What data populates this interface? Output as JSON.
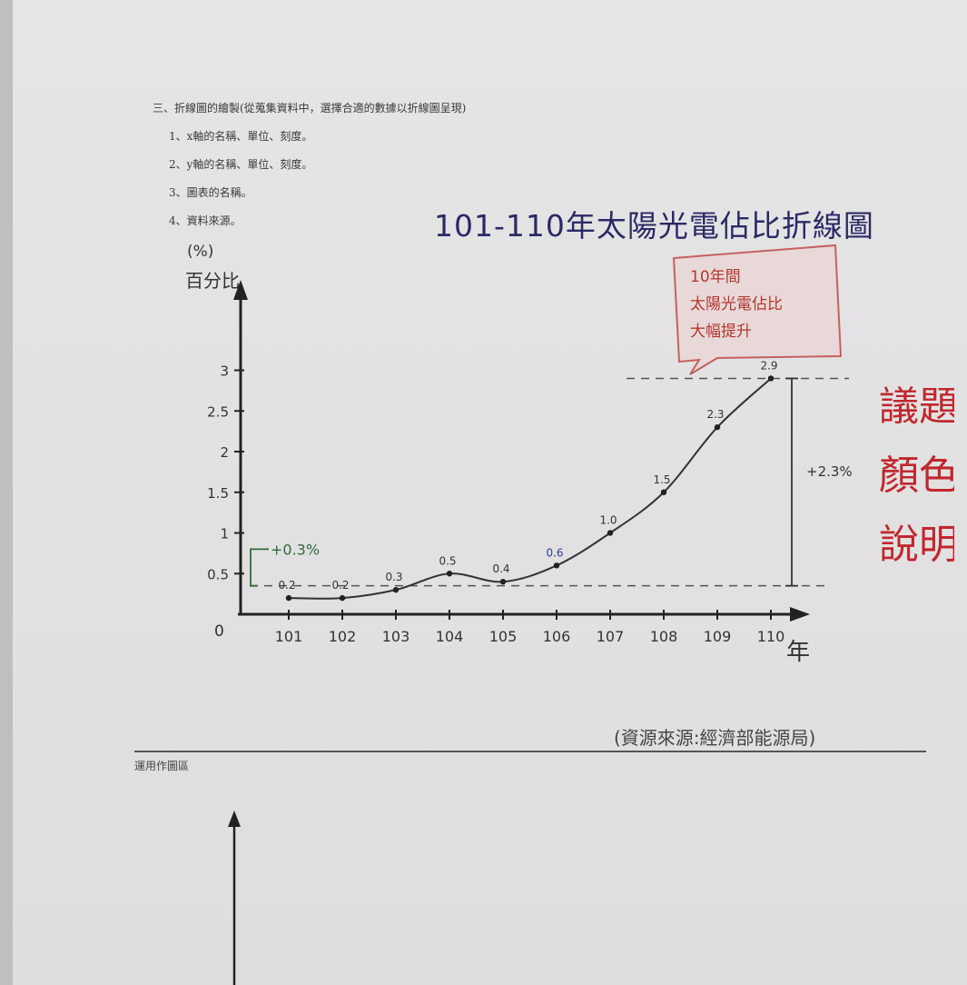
{
  "instructions": {
    "heading": "三、折線圖的繪製(從蒐集資料中，選擇合適的數據以折線圖呈現)",
    "items": [
      "1、x軸的名稱、單位、刻度。",
      "2、y軸的名稱、單位、刻度。",
      "3、圖表的名稱。",
      "4、資料來源。"
    ]
  },
  "chart_data": {
    "type": "line",
    "title": "101-110年太陽光電佔比折線圖",
    "xlabel": "年",
    "ylabel": "百分比",
    "y_unit": "(%)",
    "origin_label": "0",
    "x": [
      "101",
      "102",
      "103",
      "104",
      "105",
      "106",
      "107",
      "108",
      "109",
      "110"
    ],
    "values": [
      0.2,
      0.2,
      0.3,
      0.5,
      0.4,
      0.6,
      1.0,
      1.5,
      2.3,
      2.9
    ],
    "point_labels": [
      "0.2",
      "0.2",
      "0.3",
      "0.5",
      "0.4",
      "0.6",
      "1.0",
      "1.5",
      "2.3",
      "2.9"
    ],
    "point_label_colors": [
      "#333333",
      "#333333",
      "#333333",
      "#333333",
      "#333333",
      "#2b3f9a",
      "#333333",
      "#333333",
      "#333333",
      "#333333"
    ],
    "y_ticks": [
      0.5,
      1,
      1.5,
      2,
      2.5,
      3
    ],
    "y_tick_labels": [
      "0.5",
      "1",
      "1.5",
      "2",
      "2.5",
      "3"
    ],
    "ylim": [
      0,
      3.5
    ],
    "grid": false,
    "annotations": {
      "bracket_small": "+0.3%",
      "bracket_large": "+2.3%",
      "callout": [
        "10年間",
        "太陽光電佔比",
        "大幅提升"
      ]
    },
    "colors": {
      "line": "#333333",
      "callout_text": "#b5372e",
      "callout_border": "#c56060",
      "bracket_small": "#2e6a3a",
      "title": "#2a2a66"
    }
  },
  "side_note": [
    "議題",
    "顏色",
    "說明"
  ],
  "source": "(資源來源:經濟部能源局)",
  "work_area_label": "運用作圖區"
}
